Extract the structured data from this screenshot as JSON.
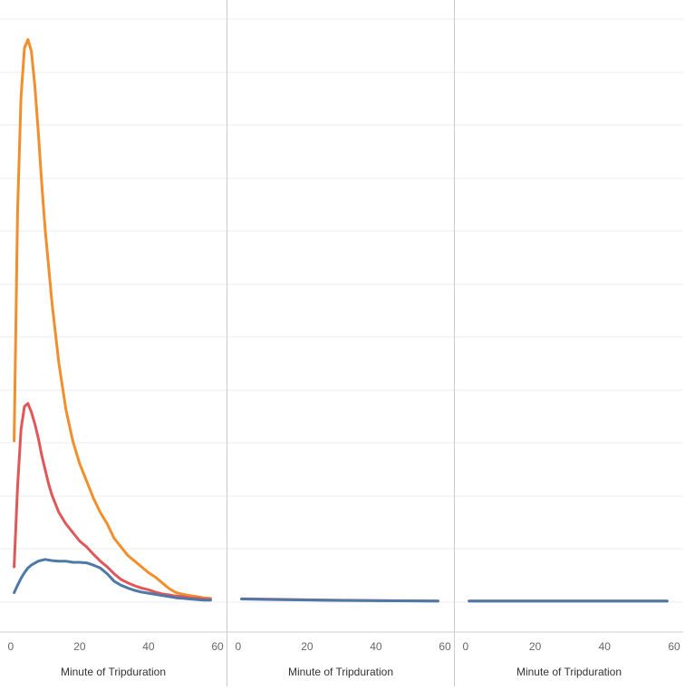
{
  "chart_data": {
    "type": "line",
    "grid": true,
    "legend": "none",
    "ylim": [
      0,
      100
    ],
    "panels": [
      {
        "xlabel": "Minute of Tripduration",
        "xlim": [
          -1,
          60
        ],
        "xticks": [
          0,
          20,
          40,
          60
        ],
        "series": [
          {
            "color": "#F28E2B",
            "x": [
              1,
              2,
              3,
              4,
              5,
              6,
              7,
              8,
              9,
              10,
              12,
              14,
              16,
              18,
              20,
              22,
              24,
              26,
              28,
              30,
              32,
              34,
              36,
              38,
              40,
              42,
              44,
              46,
              48,
              50,
              52,
              54,
              56,
              58
            ],
            "y": [
              28,
              68,
              88,
              96.5,
              98,
              96,
              90,
              82,
              73,
              65,
              52,
              41.5,
              33.5,
              28,
              24,
              21,
              18,
              15.5,
              13.5,
              11,
              9.5,
              8,
              7,
              6,
              5,
              4.2,
              3.2,
              2.2,
              1.5,
              1.2,
              1.0,
              0.8,
              0.6,
              0.5
            ]
          },
          {
            "color": "#E15759",
            "x": [
              1,
              2,
              3,
              4,
              5,
              6,
              7,
              8,
              9,
              10,
              11,
              12,
              14,
              16,
              18,
              20,
              22,
              24,
              26,
              28,
              30,
              32,
              34,
              36,
              38,
              40,
              42,
              44,
              46,
              48,
              50,
              52,
              54,
              56,
              58
            ],
            "y": [
              6,
              20,
              30,
              34,
              34.5,
              33,
              31,
              28.5,
              25.5,
              23,
              20.5,
              18.5,
              15.5,
              13.5,
              12,
              10.5,
              9.5,
              8.2,
              7,
              6,
              4.8,
              3.8,
              3.2,
              2.7,
              2.3,
              2.0,
              1.6,
              1.3,
              1.1,
              0.9,
              0.8,
              0.6,
              0.5,
              0.4,
              0.3
            ]
          },
          {
            "color": "#4E79A7",
            "x": [
              1,
              2,
              3,
              4,
              5,
              6,
              8,
              10,
              12,
              14,
              16,
              18,
              20,
              22,
              24,
              26,
              28,
              30,
              32,
              34,
              36,
              38,
              40,
              42,
              44,
              46,
              48,
              50,
              52,
              54,
              56,
              58
            ],
            "y": [
              1.5,
              2.8,
              4,
              5,
              5.8,
              6.3,
              7,
              7.3,
              7.1,
              7.0,
              7.0,
              6.8,
              6.8,
              6.7,
              6.3,
              5.8,
              4.8,
              3.5,
              2.8,
              2.3,
              1.9,
              1.6,
              1.4,
              1.2,
              1.0,
              0.8,
              0.6,
              0.5,
              0.4,
              0.3,
              0.2,
              0.2
            ]
          }
        ]
      },
      {
        "xlabel": "Minute of Tripduration",
        "xlim": [
          -1,
          60
        ],
        "xticks": [
          0,
          20,
          40,
          60
        ],
        "series": [
          {
            "color": "#E15759",
            "x": [
              1,
              10,
              20,
              30,
              40,
              50,
              58
            ],
            "y": [
              0.45,
              0.35,
              0.25,
              0.18,
              0.12,
              0.08,
              0.05
            ]
          },
          {
            "color": "#4E79A7",
            "x": [
              1,
              10,
              20,
              30,
              40,
              50,
              58
            ],
            "y": [
              0.4,
              0.3,
              0.22,
              0.15,
              0.1,
              0.07,
              0.05
            ]
          }
        ]
      },
      {
        "xlabel": "Minute of Tripduration",
        "xlim": [
          -1,
          60
        ],
        "xticks": [
          0,
          20,
          40,
          60
        ],
        "series": [
          {
            "color": "#E15759",
            "x": [
              1,
              10,
              20,
              30,
              40,
              50,
              58
            ],
            "y": [
              0.05,
              0.05,
              0.05,
              0.05,
              0.05,
              0.05,
              0.05
            ]
          },
          {
            "color": "#4E79A7",
            "x": [
              1,
              10,
              20,
              30,
              40,
              50,
              58
            ],
            "y": [
              0.05,
              0.05,
              0.05,
              0.05,
              0.05,
              0.05,
              0.05
            ]
          }
        ]
      }
    ]
  }
}
